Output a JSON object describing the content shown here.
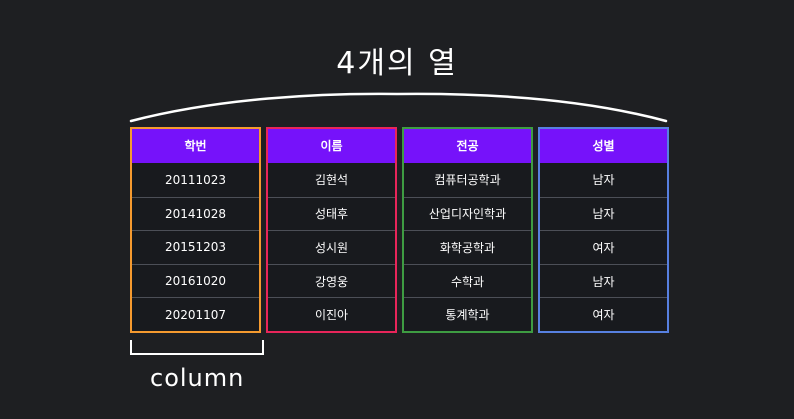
{
  "top_label": "4개의 열",
  "bottom_label": "column",
  "columns": [
    {
      "header": "학번",
      "cells": [
        "20111023",
        "20141028",
        "20151203",
        "20161020",
        "20201107"
      ],
      "color": "#f59a2f"
    },
    {
      "header": "이름",
      "cells": [
        "김현석",
        "성태후",
        "성시원",
        "강영웅",
        "이진아"
      ],
      "color": "#e8255a"
    },
    {
      "header": "전공",
      "cells": [
        "컴퓨터공학과",
        "산업디자인학과",
        "화학공학과",
        "수학과",
        "통계학과"
      ],
      "color": "#3e9c42"
    },
    {
      "header": "성별",
      "cells": [
        "남자",
        "남자",
        "여자",
        "남자",
        "여자"
      ],
      "color": "#5780e0"
    }
  ],
  "colors": {
    "background": "#1e1f22",
    "header_fill": "#7612fa",
    "line": "#ffffff"
  }
}
